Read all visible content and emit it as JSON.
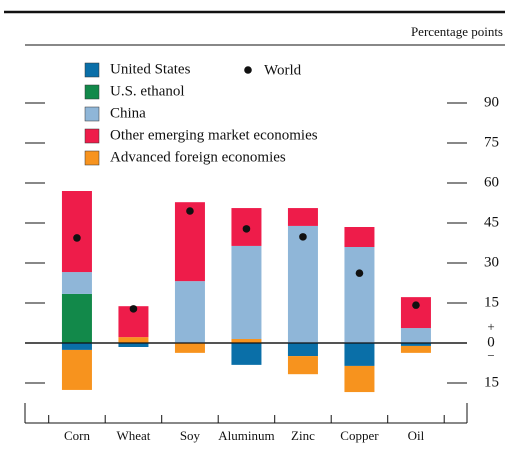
{
  "chart_data": {
    "type": "bar",
    "stacked": true,
    "unit_label": "Percentage points",
    "categories": [
      "Corn",
      "Wheat",
      "Soy",
      "Aluminum",
      "Zinc",
      "Copper",
      "Oil"
    ],
    "series": [
      {
        "name": "United States",
        "color": "#0a6fa8",
        "values": [
          -2.6,
          -1.5,
          0,
          -8.2,
          -4.9,
          -8.6,
          -1.1
        ]
      },
      {
        "name": "U.S. ethanol",
        "color": "#12894a",
        "values": [
          18.4,
          0,
          0,
          0,
          0,
          0,
          0
        ]
      },
      {
        "name": "China",
        "color": "#8fb6d8",
        "values": [
          8.2,
          0,
          23.2,
          34.9,
          43.9,
          36,
          5.6
        ]
      },
      {
        "name": "Other emerging market economies",
        "color": "#ee1c4a",
        "values": [
          30.4,
          11.6,
          29.6,
          14.2,
          6.7,
          7.5,
          11.6
        ]
      },
      {
        "name": "Advanced foreign economies",
        "color": "#f7931e",
        "values": [
          -15,
          2.2,
          -3.7,
          1.5,
          -6.8,
          -9.8,
          -2.6
        ]
      }
    ],
    "world": {
      "name": "World",
      "color": "#111111",
      "values": [
        39.4,
        12.8,
        49.5,
        42.8,
        39.8,
        26.2,
        14.2
      ]
    },
    "ylim": [
      -30,
      112
    ],
    "yticks": [
      {
        "value": -15,
        "label": "15"
      },
      0,
      15,
      30,
      45,
      60,
      75,
      90
    ],
    "zero_signs": [
      "+",
      "−"
    ]
  }
}
